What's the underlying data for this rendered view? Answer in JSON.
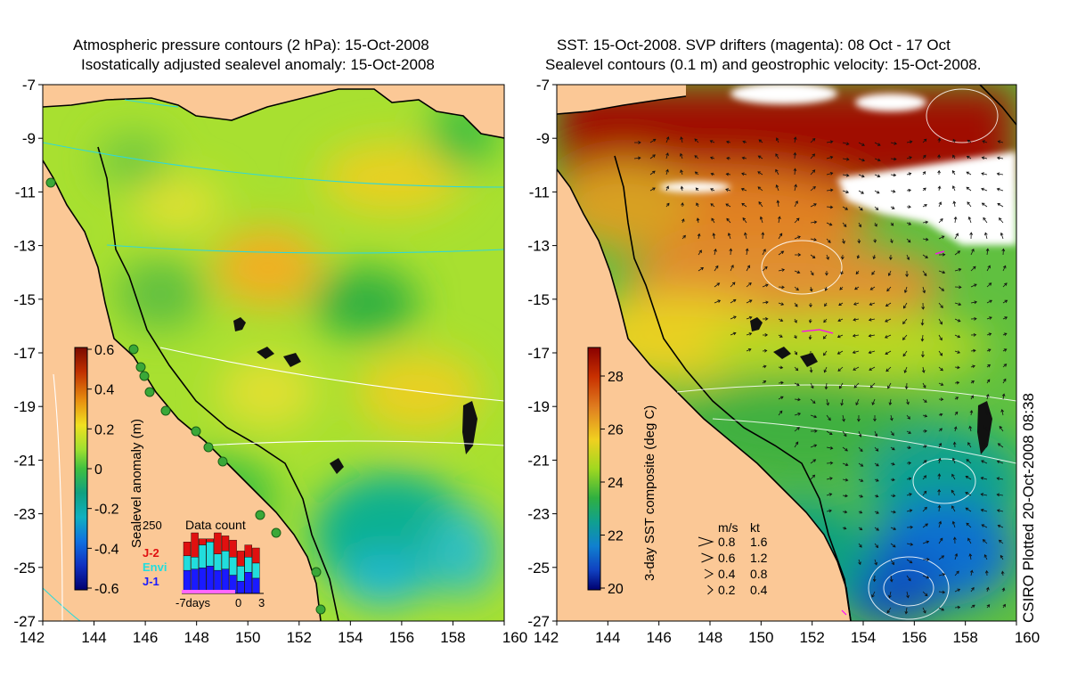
{
  "left_panel": {
    "title_line1": "Atmospheric pressure contours (2 hPa): 15-Oct-2008",
    "title_line2": "Isostatically adjusted sealevel anomaly: 15-Oct-2008",
    "colorbar_label": "Sealevel anomaly (m)",
    "colorbar_ticks": [
      "0.6",
      "0.4",
      "0.2",
      "0",
      "-0.2",
      "-0.4",
      "-0.6"
    ],
    "inset": {
      "title": "Data count",
      "ymax_label": "250",
      "legend": [
        {
          "label": "J-2",
          "color": "#e01010"
        },
        {
          "label": "Envi",
          "color": "#22dddd"
        },
        {
          "label": "J-1",
          "color": "#1a1aff"
        }
      ],
      "x_labels": [
        "-7days",
        "0",
        "3"
      ],
      "bars": [
        {
          "j1": 0.38,
          "envi": 0.62,
          "j2": 0.85
        },
        {
          "j1": 0.4,
          "envi": 0.6,
          "j2": 1.0
        },
        {
          "j1": 0.42,
          "envi": 0.8,
          "j2": 0.9
        },
        {
          "j1": 0.45,
          "envi": 0.85,
          "j2": 0.9
        },
        {
          "j1": 0.38,
          "envi": 0.65,
          "j2": 1.0
        },
        {
          "j1": 0.4,
          "envi": 0.7,
          "j2": 0.95
        },
        {
          "j1": 0.3,
          "envi": 0.6,
          "j2": 0.88
        },
        {
          "j1": 0.2,
          "envi": 0.45,
          "j2": 0.7
        },
        {
          "j1": 0.35,
          "envi": 0.6,
          "j2": 0.8
        },
        {
          "j1": 0.25,
          "envi": 0.5,
          "j2": 0.75
        }
      ]
    }
  },
  "right_panel": {
    "title_line1": "SST: 15-Oct-2008. SVP drifters (magenta): 08 Oct - 17 Oct",
    "title_line2": "Sealevel contours (0.1 m) and geostrophic velocity: 15-Oct-2008.",
    "colorbar_label": "3-day SST composite (deg C)",
    "colorbar_ticks": [
      "28",
      "26",
      "24",
      "22",
      "20"
    ],
    "speed_legend": {
      "header_ms": "m/s",
      "header_kt": "kt",
      "rows": [
        {
          "ms": "0.8",
          "kt": "1.6"
        },
        {
          "ms": "0.6",
          "kt": "1.2"
        },
        {
          "ms": "0.4",
          "kt": "0.8"
        },
        {
          "ms": "0.2",
          "kt": "0.4"
        }
      ]
    }
  },
  "axes": {
    "lon_labels": [
      "142",
      "144",
      "146",
      "148",
      "150",
      "152",
      "154",
      "156",
      "158",
      "160"
    ],
    "lat_labels": [
      "-7",
      "-9",
      "-11",
      "-13",
      "-15",
      "-17",
      "-19",
      "-21",
      "-23",
      "-25",
      "-27"
    ],
    "lon_range": [
      142,
      160
    ],
    "lat_range": [
      -27,
      -7
    ]
  },
  "credit": "CSIRO Plotted 20-Oct-2008 08:38",
  "colors": {
    "land": "#fbc896",
    "sla_background": "#a8e030",
    "cloud": "#ffffff",
    "drifter": "#ff00ff"
  }
}
